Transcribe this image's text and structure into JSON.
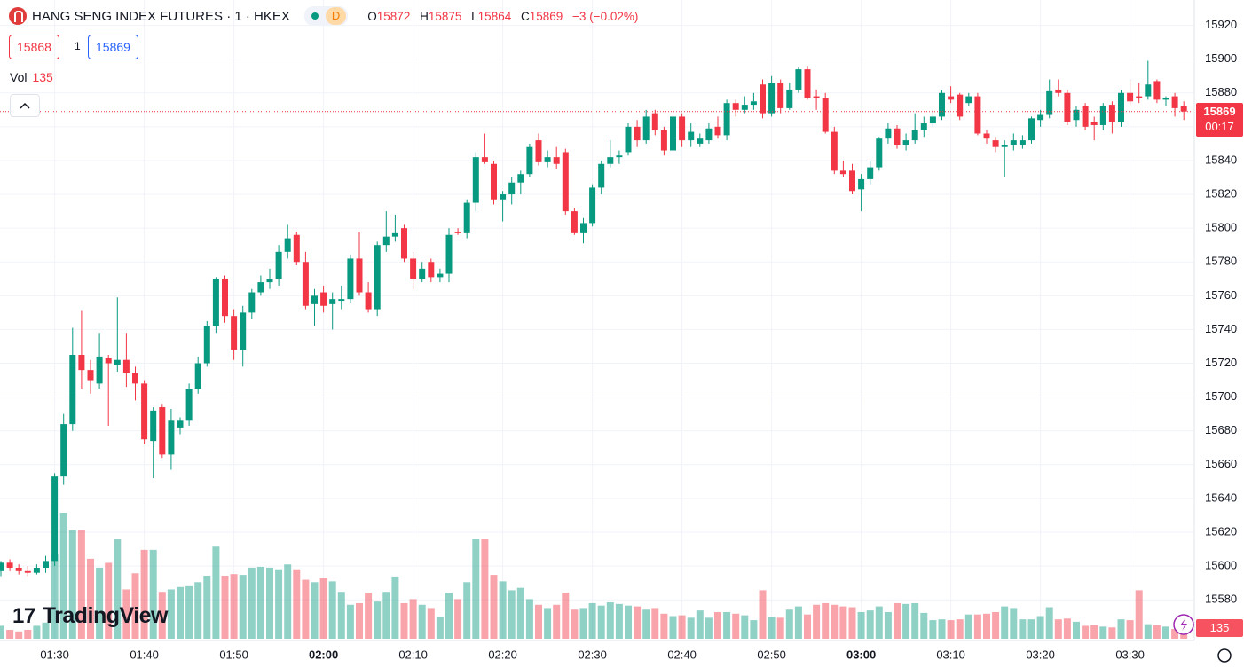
{
  "header": {
    "title": "HANG SENG INDEX FUTURES · 1 · HKEX",
    "interval_badge": "D",
    "labels": {
      "open": "O",
      "high": "H",
      "low": "L",
      "close": "C"
    },
    "change": "−3 (−0.02%)"
  },
  "quote": {
    "bid": 15868,
    "spread": 1,
    "ask": 15869
  },
  "volume_label": "Vol",
  "countdown": "00:17",
  "brand": "TradingView",
  "chart_data": {
    "type": "candlestick",
    "up_color": "#089981",
    "down_color": "#f23645",
    "x": [
      "01:24",
      "01:25",
      "01:26",
      "01:27",
      "01:28",
      "01:29",
      "01:30",
      "01:31",
      "01:32",
      "01:33",
      "01:34",
      "01:35",
      "01:36",
      "01:37",
      "01:38",
      "01:39",
      "01:40",
      "01:41",
      "01:42",
      "01:43",
      "01:44",
      "01:45",
      "01:46",
      "01:47",
      "01:48",
      "01:49",
      "01:50",
      "01:51",
      "01:52",
      "01:53",
      "01:54",
      "01:55",
      "01:56",
      "01:57",
      "01:58",
      "01:59",
      "02:00",
      "02:01",
      "02:02",
      "02:03",
      "02:04",
      "02:05",
      "02:06",
      "02:07",
      "02:08",
      "02:09",
      "02:10",
      "02:11",
      "02:12",
      "02:13",
      "02:14",
      "02:15",
      "02:16",
      "02:17",
      "02:18",
      "02:19",
      "02:20",
      "02:21",
      "02:22",
      "02:23",
      "02:24",
      "02:25",
      "02:26",
      "02:27",
      "02:28",
      "02:29",
      "02:30",
      "02:31",
      "02:32",
      "02:33",
      "02:34",
      "02:35",
      "02:36",
      "02:37",
      "02:38",
      "02:39",
      "02:40",
      "02:41",
      "02:42",
      "02:43",
      "02:44",
      "02:45",
      "02:46",
      "02:47",
      "02:48",
      "02:49",
      "02:50",
      "02:51",
      "02:52",
      "02:53",
      "02:54",
      "02:55",
      "02:56",
      "02:57",
      "02:58",
      "02:59",
      "03:00",
      "03:01",
      "03:02",
      "03:03",
      "03:04",
      "03:05",
      "03:06",
      "03:07",
      "03:08",
      "03:09",
      "03:10",
      "03:11",
      "03:12",
      "03:13",
      "03:14",
      "03:15",
      "03:16",
      "03:17",
      "03:18",
      "03:19",
      "03:20",
      "03:21",
      "03:22",
      "03:23",
      "03:24",
      "03:25",
      "03:26",
      "03:27",
      "03:28",
      "03:29",
      "03:30",
      "03:31",
      "03:32",
      "03:33",
      "03:34",
      "03:35",
      "03:36"
    ],
    "open": [
      15597,
      15602,
      15599,
      15597,
      15596,
      15599,
      15603,
      15653,
      15684,
      15725,
      15716,
      15708,
      15723,
      15719,
      15722,
      15714,
      15708,
      15674,
      15694,
      15666,
      15682,
      15686,
      15705,
      15720,
      15742,
      15770,
      15748,
      15728,
      15750,
      15762,
      15768,
      15770,
      15786,
      15796,
      15780,
      15755,
      15762,
      15755,
      15757,
      15758,
      15782,
      15762,
      15752,
      15790,
      15795,
      15800,
      15782,
      15770,
      15780,
      15771,
      15773,
      15798,
      15797,
      15815,
      15842,
      15838,
      15817,
      15820,
      15827,
      15832,
      15852,
      15839,
      15842,
      15845,
      15810,
      15797,
      15803,
      15824,
      15838,
      15842,
      15845,
      15860,
      15852,
      15868,
      15858,
      15846,
      15866,
      15852,
      15850,
      15852,
      15860,
      15855,
      15874,
      15870,
      15873,
      15885,
      15868,
      15886,
      15871,
      15882,
      15894,
      15878,
      15877,
      15857,
      15834,
      15834,
      15823,
      15829,
      15836,
      15853,
      15859,
      15849,
      15852,
      15858,
      15862,
      15866,
      15878,
      15879,
      15874,
      15878,
      15856,
      15852,
      15848,
      15849,
      15849,
      15852,
      15864,
      15867,
      15882,
      15880,
      15864,
      15872,
      15863,
      15861,
      15873,
      15863,
      15880,
      15878,
      15878,
      15887,
      15876,
      15878,
      15872
    ],
    "high": [
      15603,
      15604,
      15601,
      15600,
      15601,
      15606,
      15655,
      15690,
      15741,
      15751,
      15722,
      15738,
      15725,
      15759,
      15738,
      15718,
      15710,
      15694,
      15696,
      15693,
      15688,
      15708,
      15724,
      15745,
      15771,
      15772,
      15752,
      15754,
      15764,
      15772,
      15776,
      15790,
      15802,
      15798,
      15786,
      15764,
      15766,
      15762,
      15766,
      15784,
      15798,
      15768,
      15792,
      15810,
      15808,
      15802,
      15786,
      15780,
      15782,
      15776,
      15800,
      15800,
      15817,
      15845,
      15856,
      15840,
      15822,
      15830,
      15834,
      15850,
      15856,
      15846,
      15848,
      15847,
      15812,
      15806,
      15826,
      15840,
      15852,
      15846,
      15862,
      15864,
      15870,
      15870,
      15860,
      15872,
      15868,
      15862,
      15856,
      15862,
      15866,
      15876,
      15876,
      15878,
      15880,
      15888,
      15890,
      15888,
      15886,
      15895,
      15896,
      15882,
      15880,
      15860,
      15840,
      15838,
      15832,
      15840,
      15854,
      15862,
      15861,
      15856,
      15868,
      15866,
      15870,
      15882,
      15884,
      15880,
      15880,
      15880,
      15858,
      15854,
      15852,
      15856,
      15855,
      15866,
      15870,
      15888,
      15888,
      15882,
      15872,
      15874,
      15866,
      15874,
      15875,
      15882,
      15888,
      15886,
      15899,
      15888,
      15878,
      15880,
      15875
    ],
    "low": [
      15594,
      15597,
      15595,
      15594,
      15595,
      15596,
      15600,
      15648,
      15680,
      15705,
      15702,
      15705,
      15683,
      15715,
      15706,
      15698,
      15672,
      15652,
      15664,
      15657,
      15678,
      15683,
      15702,
      15718,
      15738,
      15744,
      15722,
      15718,
      15746,
      15760,
      15764,
      15766,
      15782,
      15778,
      15752,
      15742,
      15750,
      15740,
      15752,
      15756,
      15760,
      15750,
      15748,
      15786,
      15792,
      15780,
      15764,
      15768,
      15768,
      15768,
      15768,
      15796,
      15794,
      15810,
      15838,
      15814,
      15804,
      15814,
      15820,
      15830,
      15837,
      15836,
      15835,
      15808,
      15796,
      15791,
      15801,
      15820,
      15836,
      15838,
      15843,
      15848,
      15850,
      15855,
      15843,
      15844,
      15848,
      15848,
      15848,
      15850,
      15853,
      15852,
      15866,
      15868,
      15870,
      15865,
      15866,
      15868,
      15870,
      15880,
      15876,
      15870,
      15856,
      15832,
      15830,
      15820,
      15810,
      15826,
      15834,
      15850,
      15847,
      15846,
      15850,
      15854,
      15860,
      15864,
      15874,
      15864,
      15872,
      15855,
      15850,
      15845,
      15830,
      15846,
      15847,
      15850,
      15860,
      15865,
      15878,
      15861,
      15860,
      15858,
      15852,
      15858,
      15856,
      15860,
      15872,
      15874,
      15876,
      15874,
      15872,
      15866,
      15864
    ],
    "close": [
      15602,
      15599,
      15597,
      15596,
      15599,
      15603,
      15653,
      15684,
      15725,
      15716,
      15710,
      15724,
      15720,
      15722,
      15714,
      15708,
      15675,
      15692,
      15666,
      15686,
      15686,
      15705,
      15720,
      15742,
      15770,
      15748,
      15728,
      15750,
      15762,
      15768,
      15770,
      15786,
      15794,
      15780,
      15754,
      15760,
      15754,
      15758,
      15758,
      15782,
      15762,
      15752,
      15790,
      15795,
      15797,
      15782,
      15770,
      15776,
      15771,
      15773,
      15796,
      15797,
      15815,
      15842,
      15839,
      15817,
      15820,
      15827,
      15832,
      15848,
      15839,
      15842,
      15838,
      15810,
      15797,
      15803,
      15824,
      15838,
      15842,
      15843,
      15860,
      15852,
      15866,
      15858,
      15846,
      15866,
      15852,
      15857,
      15853,
      15859,
      15855,
      15874,
      15870,
      15873,
      15875,
      15868,
      15886,
      15871,
      15882,
      15894,
      15877,
      15877,
      15857,
      15834,
      15832,
      15822,
      15829,
      15836,
      15853,
      15859,
      15849,
      15852,
      15858,
      15862,
      15866,
      15880,
      15876,
      15866,
      15878,
      15856,
      15853,
      15848,
      15849,
      15852,
      15852,
      15865,
      15867,
      15881,
      15880,
      15863,
      15870,
      15860,
      15861,
      15872,
      15863,
      15880,
      15875,
      15877,
      15885,
      15876,
      15877,
      15871,
      15869
    ],
    "volume": [
      160,
      110,
      90,
      110,
      160,
      200,
      1050,
      1560,
      1340,
      1340,
      990,
      880,
      940,
      1230,
      610,
      810,
      1100,
      1100,
      580,
      610,
      640,
      650,
      700,
      780,
      1140,
      780,
      800,
      790,
      880,
      890,
      880,
      860,
      920,
      860,
      730,
      700,
      750,
      710,
      580,
      420,
      440,
      570,
      460,
      580,
      770,
      440,
      490,
      420,
      380,
      270,
      570,
      490,
      700,
      1230,
      1230,
      790,
      710,
      600,
      630,
      490,
      420,
      380,
      420,
      570,
      360,
      380,
      440,
      410,
      450,
      430,
      410,
      400,
      360,
      380,
      310,
      280,
      290,
      260,
      350,
      260,
      330,
      330,
      310,
      290,
      230,
      600,
      270,
      260,
      360,
      400,
      300,
      420,
      440,
      420,
      400,
      390,
      330,
      350,
      400,
      330,
      440,
      430,
      440,
      320,
      230,
      240,
      230,
      240,
      300,
      300,
      310,
      330,
      400,
      380,
      240,
      240,
      280,
      390,
      240,
      250,
      210,
      160,
      170,
      150,
      140,
      240,
      230,
      600,
      180,
      170,
      150,
      120,
      135
    ],
    "ylim": [
      15557,
      15935
    ],
    "yticks": [
      15580,
      15600,
      15620,
      15640,
      15660,
      15680,
      15700,
      15720,
      15740,
      15760,
      15780,
      15800,
      15820,
      15840,
      15860,
      15880,
      15900,
      15920
    ],
    "xticks": [
      "01:30",
      "01:40",
      "01:50",
      "02:00",
      "02:10",
      "02:20",
      "02:30",
      "02:40",
      "02:50",
      "03:00",
      "03:10",
      "03:20",
      "03:30"
    ],
    "grid": true
  }
}
